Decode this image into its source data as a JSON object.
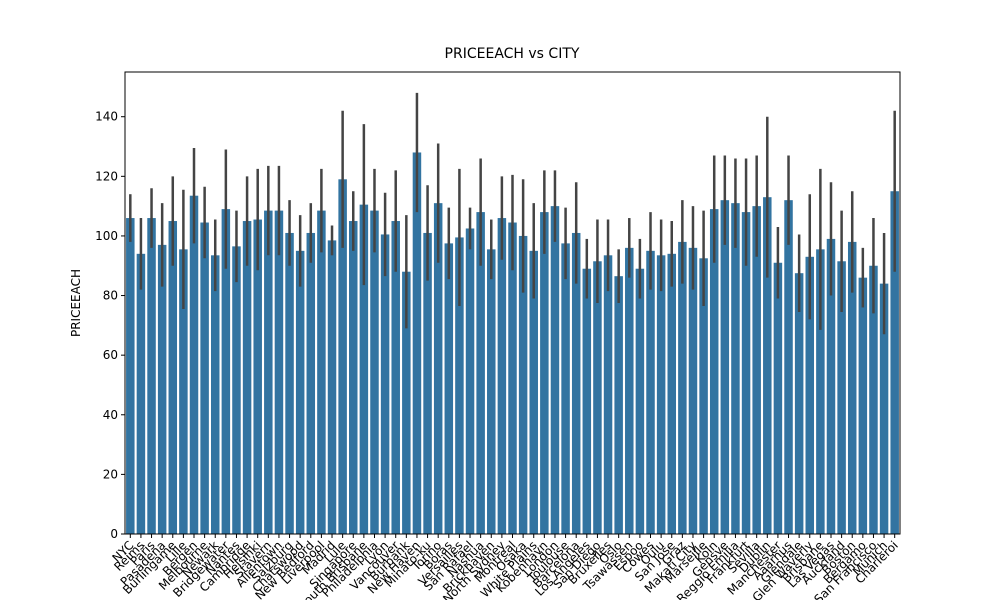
{
  "chart_data": {
    "type": "bar",
    "title": "PRICEEACH vs CITY",
    "y_label": "PRICEEACH",
    "categories": [
      "NYC",
      "Reims",
      "Paris",
      "Pasadena",
      "Burlingame",
      "Lille",
      "Bergen",
      "Melbourne",
      "Newark",
      "Bridgewater",
      "Nantes",
      "Cambridge",
      "Helsinki",
      "Stavern",
      "Allentown",
      "Salzburg",
      "Chatswood",
      "New Bedford",
      "Liverpool",
      "Madrid",
      "Lule",
      "Singapore",
      "South Brisbane",
      "Philadelphia",
      "Lyon",
      "Vancouver",
      "Burbank",
      "New Haven",
      "Minato-ku",
      "Torino",
      "Boras",
      "Versailles",
      "San Rafael",
      "Nashua",
      "Brickhaven",
      "North Sydney",
      "Montreal",
      "Osaka",
      "White Plains",
      "Kobenhavn",
      "London",
      "Toulouse",
      "Barcelona",
      "Los Angeles",
      "San Diego",
      "Bruxelles",
      "Oslo",
      "Tsawassen",
      "Espoo",
      "Cowes",
      "Oulu",
      "San Jose",
      "Graz",
      "Makati City",
      "Marseille",
      "Koln",
      "Gensve",
      "Reggio Emilia",
      "Frankfurt",
      "Sevilla",
      "Dublin",
      "Manchester",
      "Aaarhus",
      "Glendale",
      "Glen Waverly",
      "Brisbane",
      "Las Vegas",
      "Auckland",
      "Boston",
      "Bergamo",
      "San Francisco",
      "Munich",
      "Charleroi"
    ],
    "values": [
      106,
      94,
      106,
      97,
      105,
      95.5,
      113.5,
      104.5,
      93.5,
      109,
      96.5,
      105,
      105.5,
      108.5,
      108.5,
      101,
      95,
      101,
      108.5,
      98.5,
      119,
      105,
      110.5,
      108.5,
      100.5,
      105,
      88,
      128,
      101,
      111,
      97.5,
      99.5,
      102.5,
      108,
      95.5,
      106,
      104.5,
      100,
      95,
      108,
      110,
      97.5,
      101,
      89,
      91.5,
      93.5,
      86.5,
      96,
      89,
      95,
      93.5,
      94,
      98,
      96,
      92.5,
      109,
      112,
      111,
      108,
      110,
      113,
      91,
      112,
      87.5,
      93,
      95.5,
      99,
      91.5,
      98,
      86,
      90,
      84,
      115
    ],
    "errors": [
      8,
      12,
      10,
      14,
      15,
      20,
      16,
      12,
      12,
      20,
      12,
      15,
      17,
      15,
      15,
      11,
      12,
      10,
      14,
      5,
      23,
      10,
      27,
      14,
      14,
      17,
      19,
      20,
      16,
      20,
      12,
      23,
      7,
      18,
      10,
      14,
      16,
      19,
      16,
      14,
      12,
      12,
      17,
      10,
      14,
      12,
      9,
      10,
      10,
      13,
      12,
      11,
      14,
      14,
      16,
      18,
      15,
      15,
      18,
      17,
      27,
      12,
      15,
      13,
      21,
      27,
      19,
      17,
      17,
      10,
      16,
      17,
      27
    ],
    "color": "#3274a1",
    "error_color": "#444444",
    "ylim": [
      0,
      155
    ],
    "yticks": [
      0,
      20,
      40,
      60,
      80,
      100,
      120,
      140
    ]
  }
}
